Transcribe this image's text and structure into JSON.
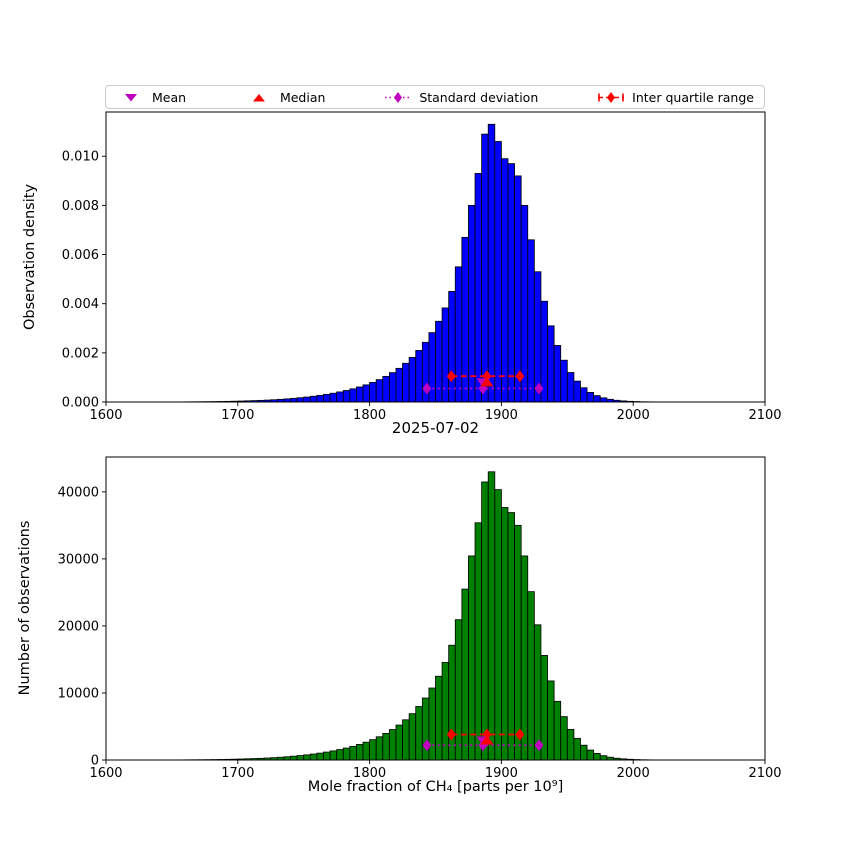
{
  "figure": {
    "title": "2025-07-02",
    "xlabel": "Mole fraction of CH₄ [parts per 10⁹]",
    "background": "#ffffff"
  },
  "legend": {
    "items": [
      {
        "label": "Mean",
        "marker": "triangle-down",
        "color": "#bf00bf"
      },
      {
        "label": "Median",
        "marker": "triangle-up",
        "color": "#ff0000"
      },
      {
        "label": "Standard deviation",
        "marker": "diamond-dotted-line",
        "color": "#bf00bf"
      },
      {
        "label": "Inter quartile range",
        "marker": "diamond-dashed-errorbar",
        "color": "#ff0000"
      }
    ]
  },
  "chart_data": [
    {
      "name": "top-density-histogram",
      "type": "bar",
      "ylabel": "Observation density",
      "bar_color": "#0000ff",
      "edge_color": "#000000",
      "bin_start": 1650,
      "bin_width": 5,
      "xlim": [
        1600,
        2100
      ],
      "ylim": [
        0,
        0.0118
      ],
      "xticks": [
        1600,
        1700,
        1800,
        1900,
        2000,
        2100
      ],
      "yticks": [
        0,
        0.002,
        0.004,
        0.006,
        0.008,
        0.01
      ],
      "ytick_format": "fixed3",
      "values": [
        4e-06,
        5e-06,
        7e-06,
        9e-06,
        1.1e-05,
        1.4e-05,
        1.7e-05,
        2.1e-05,
        2.6e-05,
        3.2e-05,
        3.9e-05,
        4.7e-05,
        5.6e-05,
        6.6e-05,
        7.8e-05,
        9.2e-05,
        0.000108,
        0.000127,
        0.000149,
        0.000174,
        0.000202,
        0.000234,
        0.00027,
        0.000311,
        0.000357,
        0.000409,
        0.000468,
        0.000535,
        0.000611,
        0.000698,
        0.000797,
        0.000911,
        0.001042,
        0.001194,
        0.00137,
        0.001576,
        0.001816,
        0.002098,
        0.00243,
        0.002822,
        0.003284,
        0.003828,
        0.0045,
        0.0055,
        0.0067,
        0.008,
        0.0093,
        0.0109,
        0.0113,
        0.0106,
        0.0099,
        0.0097,
        0.0092,
        0.008,
        0.0066,
        0.0053,
        0.0041,
        0.0031,
        0.0023,
        0.0017,
        0.0012,
        0.00085,
        0.00058,
        0.00039,
        0.00026,
        0.00017,
        0.00011,
        7e-05,
        4.5e-05,
        2.8e-05,
        1.7e-05,
        1e-05,
        6e-06
      ],
      "stats": {
        "mean": 1886,
        "median": 1889,
        "std": 42.5,
        "q1": 1862,
        "q3": 1914
      },
      "markers": {
        "mean": {
          "x": 1886,
          "y": 0.0008,
          "color": "#bf00bf"
        },
        "median": {
          "x": 1889,
          "y": 0.0008,
          "color": "#ff0000"
        },
        "std": {
          "x1": 1843.5,
          "center": 1886,
          "x2": 1928.5,
          "y": 0.00055,
          "color": "#bf00bf"
        },
        "iqr": {
          "x1": 1862,
          "center": 1889,
          "x2": 1914,
          "y": 0.00105,
          "color": "#ff0000"
        }
      }
    },
    {
      "name": "bottom-count-histogram",
      "type": "bar",
      "ylabel": "Number of observations",
      "bar_color": "#008000",
      "edge_color": "#000000",
      "bin_start": 1650,
      "bin_width": 5,
      "xlim": [
        1600,
        2100
      ],
      "ylim": [
        0,
        45200
      ],
      "xticks": [
        1600,
        1700,
        1800,
        1900,
        2000,
        2100
      ],
      "yticks": [
        0,
        10000,
        20000,
        30000,
        40000
      ],
      "ytick_format": "int",
      "values": [
        15,
        19,
        27,
        34,
        42,
        53,
        65,
        80,
        99,
        122,
        148,
        179,
        213,
        251,
        297,
        350,
        411,
        483,
        567,
        662,
        769,
        890,
        1027,
        1183,
        1358,
        1556,
        1781,
        2036,
        2325,
        2656,
        3033,
        3466,
        3965,
        4543,
        5213,
        5997,
        6910,
        7983,
        9246,
        10738,
        12496,
        14566,
        17123,
        20928,
        25494,
        30440,
        35387,
        41475,
        42997,
        40333,
        37670,
        36909,
        35006,
        30440,
        25113,
        20167,
        15601,
        11796,
        8752,
        6469,
        4566,
        3234,
        2207,
        1484,
        989,
        647,
        419,
        266,
        171,
        107,
        65,
        38,
        23
      ],
      "stats": {
        "mean": 1886,
        "median": 1889,
        "std": 42.5,
        "q1": 1862,
        "q3": 1914
      },
      "markers": {
        "mean": {
          "x": 1886,
          "y": 2900,
          "color": "#bf00bf"
        },
        "median": {
          "x": 1889,
          "y": 2900,
          "color": "#ff0000"
        },
        "std": {
          "x1": 1843.5,
          "center": 1886,
          "x2": 1928.5,
          "y": 2200,
          "color": "#bf00bf"
        },
        "iqr": {
          "x1": 1862,
          "center": 1889,
          "x2": 1914,
          "y": 3800,
          "color": "#ff0000"
        }
      }
    }
  ]
}
